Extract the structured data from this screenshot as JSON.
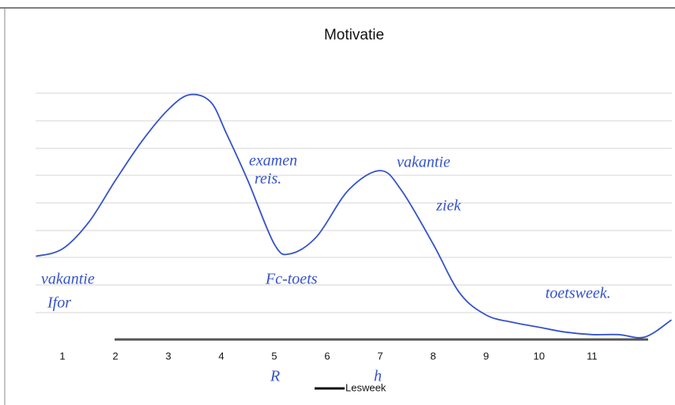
{
  "chart_data": {
    "type": "line",
    "title": "Motivatie",
    "x_label": "Lesweek",
    "x": [
      0.5,
      1.0,
      1.5,
      2.0,
      2.5,
      3.0,
      3.4,
      3.8,
      4.1,
      4.5,
      5.0,
      5.3,
      5.8,
      6.4,
      7.0,
      7.4,
      8.0,
      8.5,
      9.0,
      9.5,
      10.0,
      10.5,
      11.0,
      11.5,
      12.0,
      12.5
    ],
    "values": [
      3.4,
      3.7,
      4.8,
      6.5,
      8.1,
      9.4,
      10.0,
      9.7,
      8.4,
      6.5,
      3.9,
      3.5,
      4.2,
      6.1,
      6.9,
      6.1,
      3.9,
      1.9,
      1.0,
      0.7,
      0.5,
      0.3,
      0.2,
      0.2,
      0.1,
      0.8
    ],
    "color": "#3553c9",
    "xlim": [
      0.5,
      12.5
    ],
    "xticks": [
      1,
      2,
      3,
      4,
      5,
      6,
      7,
      8,
      9,
      10,
      11
    ],
    "ylim": [
      0,
      10
    ],
    "annotations": [
      "vakantie",
      "Ifor",
      "examen",
      "reis.",
      "vakantie",
      "ziek",
      "Fc-toets",
      "toetsweek.",
      "R",
      "h"
    ]
  }
}
